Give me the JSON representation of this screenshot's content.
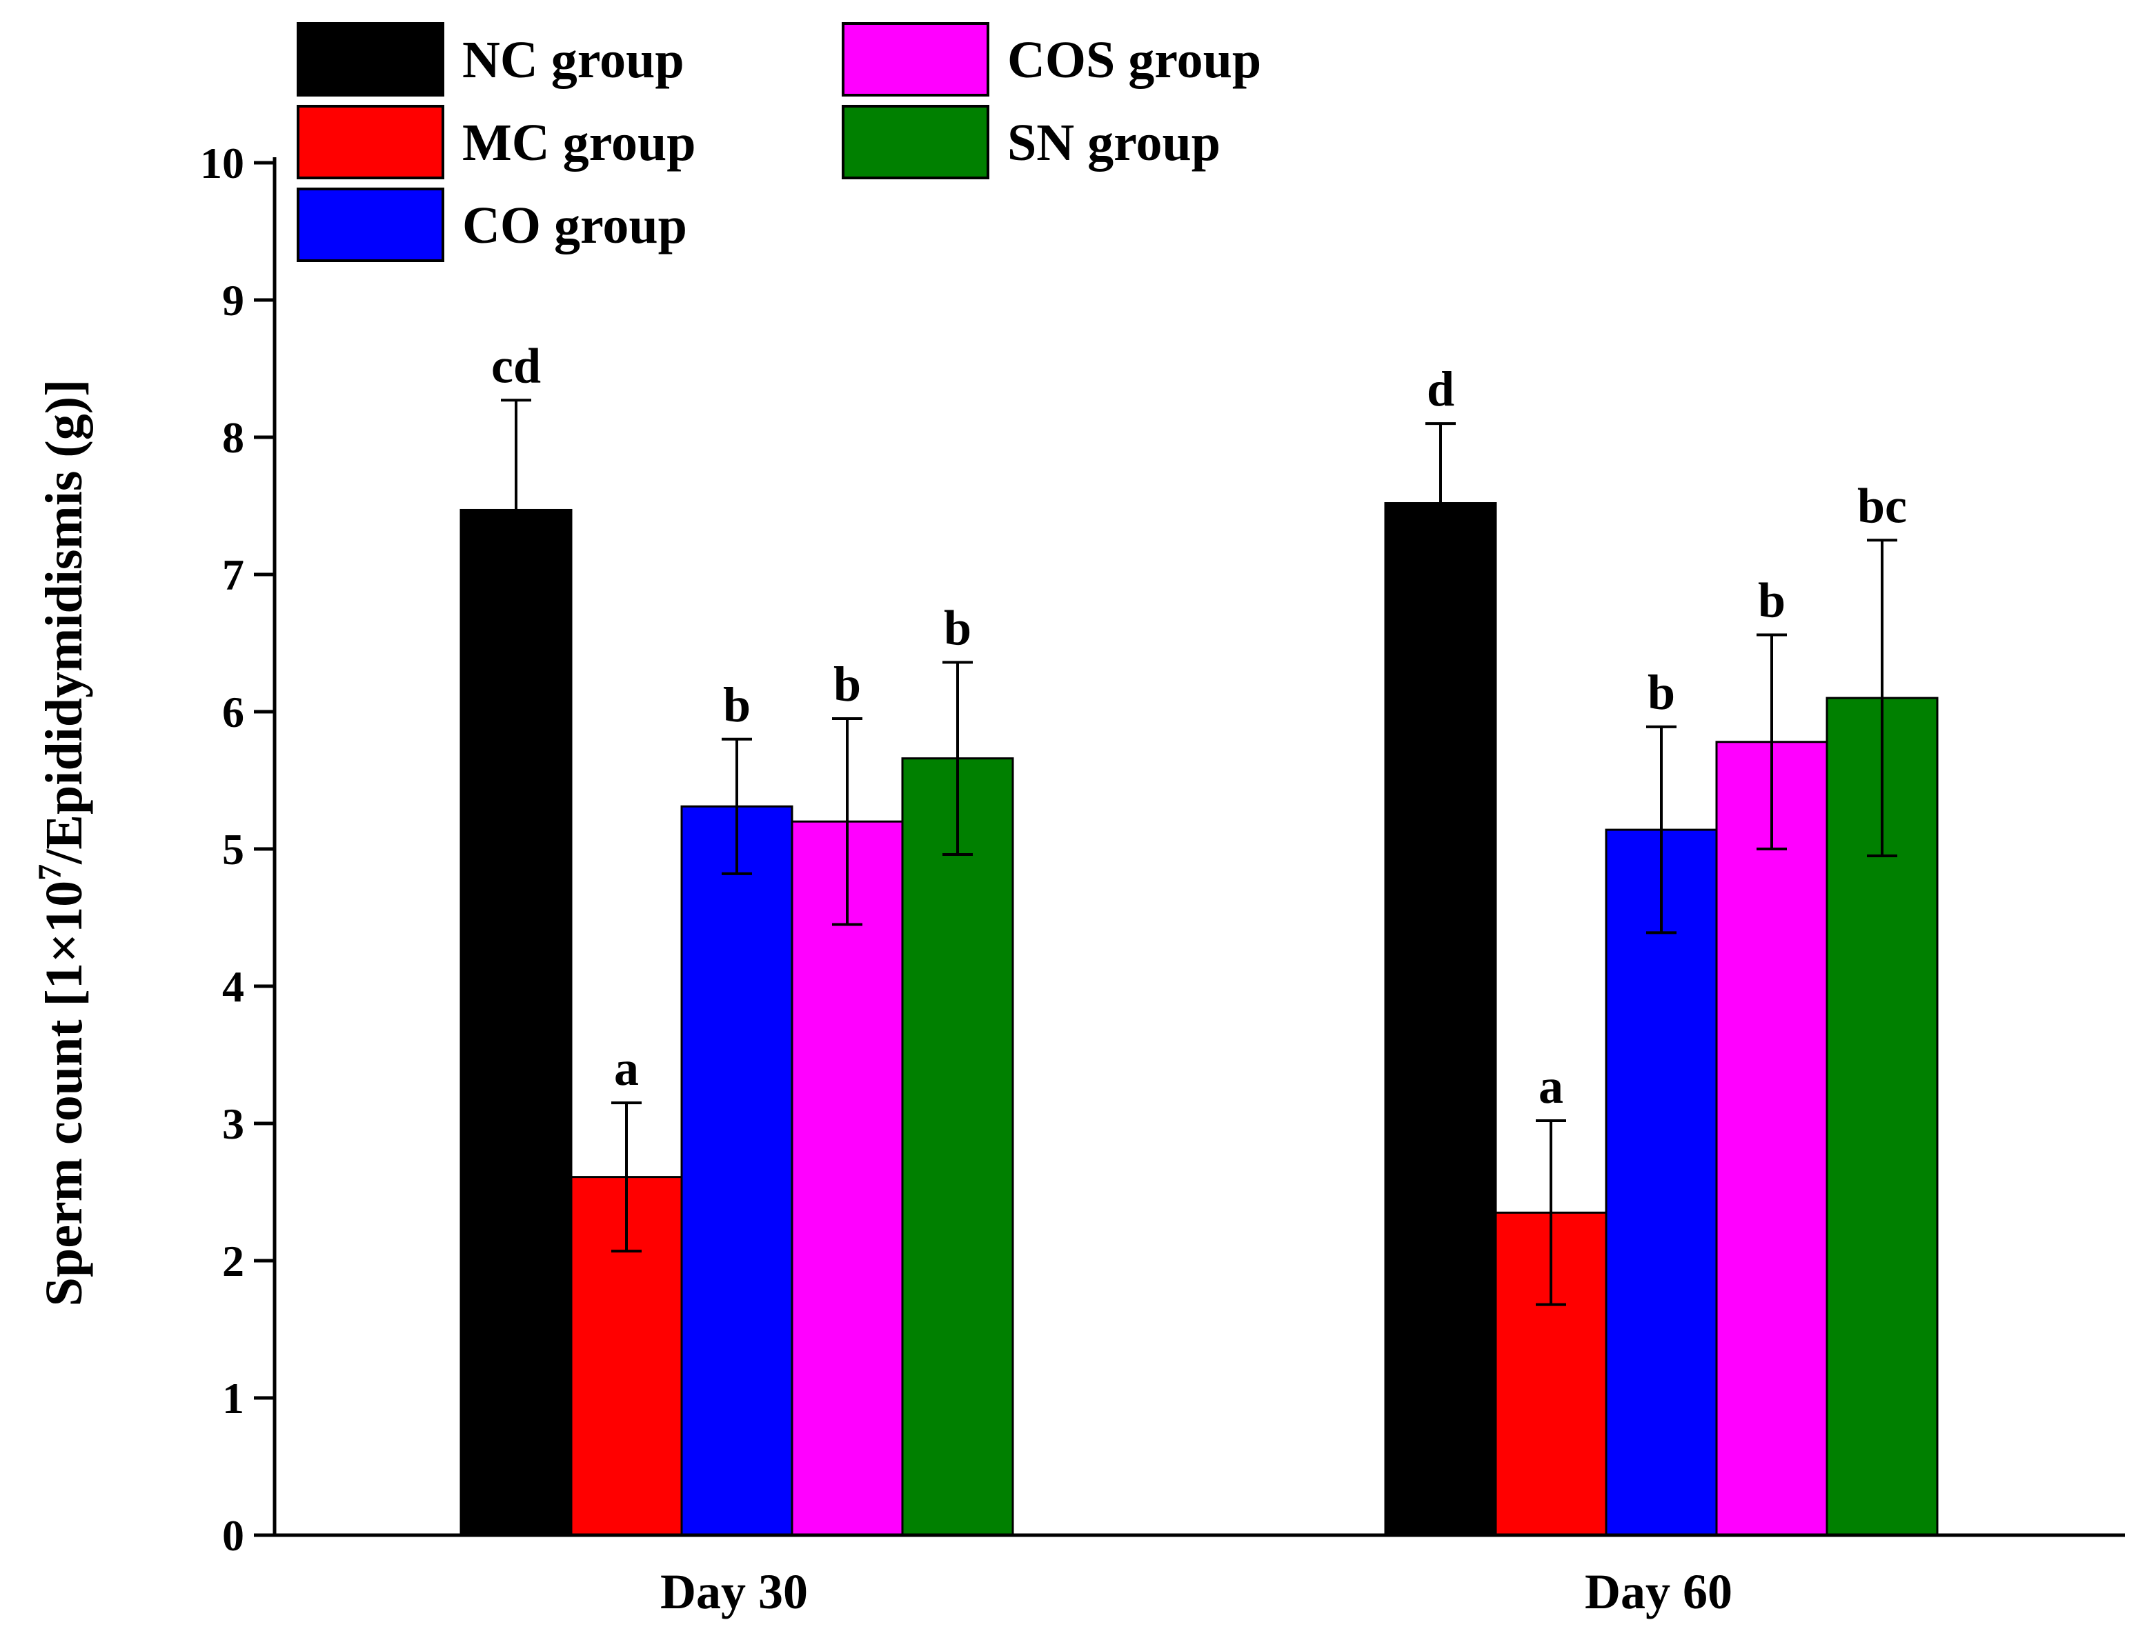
{
  "chart_data": {
    "type": "bar",
    "title": "",
    "xlabel": "",
    "ylabel": {
      "prefix": "Sperm count [1×10",
      "superscript": "7",
      "suffix": "/Epididymidismis (g)]"
    },
    "ylim": [
      0,
      10
    ],
    "yticks": [
      "0",
      "1",
      "2",
      "3",
      "4",
      "5",
      "6",
      "7",
      "8",
      "9",
      "10"
    ],
    "grid": false,
    "legend_position": "top-left",
    "categories": [
      "Day 30",
      "Day 60"
    ],
    "series": [
      {
        "name": "NC group",
        "color": "#000000",
        "values": [
          7.47,
          7.52
        ],
        "errors": [
          0.8,
          0.58
        ],
        "labels": [
          "cd",
          "d"
        ]
      },
      {
        "name": "MC group",
        "color": "#ff0000",
        "values": [
          2.61,
          2.35
        ],
        "errors": [
          0.54,
          0.67
        ],
        "labels": [
          "a",
          "a"
        ]
      },
      {
        "name": "CO group",
        "color": "#0000ff",
        "values": [
          5.31,
          5.14
        ],
        "errors": [
          0.49,
          0.75
        ],
        "labels": [
          "b",
          "b"
        ]
      },
      {
        "name": "COS group",
        "color": "#ff00ff",
        "values": [
          5.2,
          5.78
        ],
        "errors": [
          0.75,
          0.78
        ],
        "labels": [
          "b",
          "b"
        ]
      },
      {
        "name": "SN group",
        "color": "#008000",
        "values": [
          5.66,
          6.1
        ],
        "errors": [
          0.7,
          1.15
        ],
        "labels": [
          "b",
          "bc"
        ]
      }
    ]
  }
}
